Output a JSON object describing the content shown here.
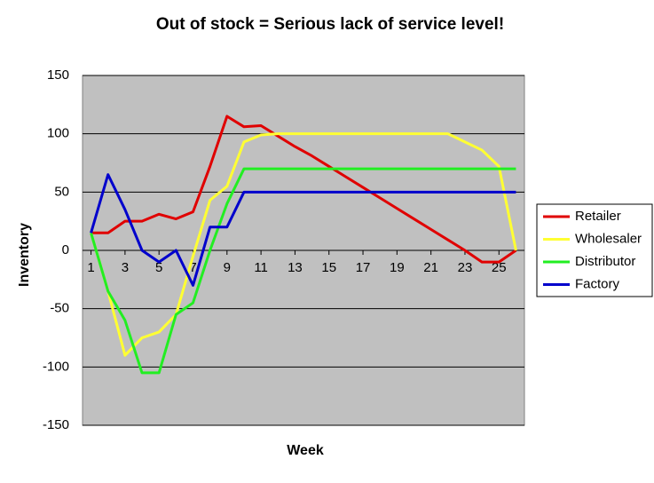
{
  "chart_data": {
    "type": "line",
    "title": "Out of stock = Serious lack of service level!",
    "x_label": "Week",
    "y_label": "Inventory",
    "x": [
      1,
      2,
      3,
      4,
      5,
      6,
      7,
      8,
      9,
      10,
      11,
      12,
      13,
      14,
      15,
      16,
      17,
      18,
      19,
      20,
      21,
      22,
      23,
      24,
      25,
      26
    ],
    "xlim": [
      0.5,
      26.5
    ],
    "xticks": [
      1,
      3,
      5,
      7,
      9,
      11,
      13,
      15,
      17,
      19,
      21,
      23,
      25
    ],
    "ylim": [
      -150,
      150
    ],
    "yticks": [
      -150,
      -100,
      -50,
      0,
      50,
      100,
      150
    ],
    "grid": true,
    "legend": "right",
    "series": [
      {
        "name": "Retailer",
        "color": "#e00000",
        "values": [
          15,
          15,
          25,
          25,
          31,
          27,
          33,
          72,
          115,
          106,
          107,
          98,
          89,
          81,
          72,
          63,
          54,
          45,
          36,
          27,
          18,
          9,
          0,
          -10,
          -10,
          0
        ]
      },
      {
        "name": "Wholesaler",
        "color": "#ffff33",
        "values": [
          15,
          -35,
          -90,
          -75,
          -70,
          -55,
          -5,
          43,
          55,
          93,
          99,
          100,
          100,
          100,
          100,
          100,
          100,
          100,
          100,
          100,
          100,
          100,
          93,
          86,
          72,
          0
        ]
      },
      {
        "name": "Distributor",
        "color": "#22ee22",
        "values": [
          15,
          -35,
          -60,
          -105,
          -105,
          -55,
          -45,
          0,
          40,
          70,
          70,
          70,
          70,
          70,
          70,
          70,
          70,
          70,
          70,
          70,
          70,
          70,
          70,
          70,
          70,
          70
        ]
      },
      {
        "name": "Factory",
        "color": "#0000cc",
        "values": [
          15,
          65,
          35,
          0,
          -10,
          0,
          -30,
          20,
          20,
          50,
          50,
          50,
          50,
          50,
          50,
          50,
          50,
          50,
          50,
          50,
          50,
          50,
          50,
          50,
          50,
          50
        ]
      }
    ]
  }
}
